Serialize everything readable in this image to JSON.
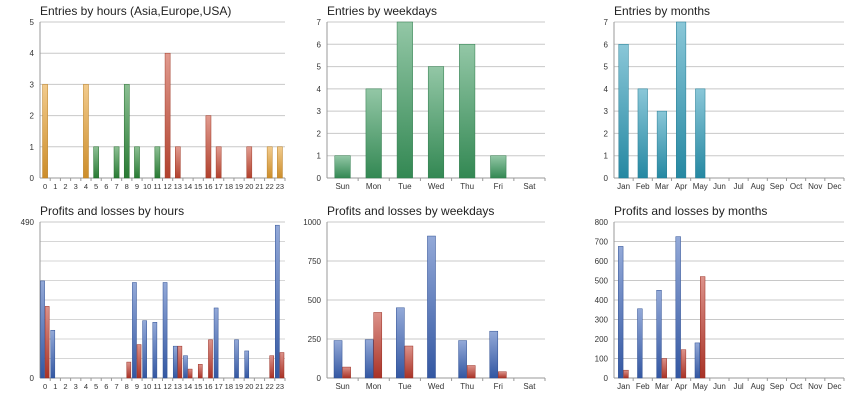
{
  "chart_data": [
    {
      "type": "bar",
      "title": "Entries by hours (Asia,Europe,USA)",
      "categories": [
        "0",
        "1",
        "2",
        "3",
        "4",
        "5",
        "6",
        "7",
        "8",
        "9",
        "10",
        "11",
        "12",
        "13",
        "14",
        "15",
        "16",
        "17",
        "18",
        "19",
        "20",
        "21",
        "22",
        "23"
      ],
      "values": [
        3,
        0,
        0,
        0,
        3,
        1,
        0,
        1,
        3,
        1,
        0,
        1,
        4,
        1,
        0,
        0,
        2,
        1,
        0,
        0,
        1,
        0,
        1,
        1
      ],
      "bar_colors": [
        "#e8a030",
        "#e8a030",
        "#e8a030",
        "#e8a030",
        "#e8a030",
        "#2e8b3a",
        "#2e8b3a",
        "#2e8b3a",
        "#2e8b3a",
        "#2e8b3a",
        "#2e8b3a",
        "#2e8b3a",
        "#c94a33",
        "#c94a33",
        "#c94a33",
        "#c94a33",
        "#c94a33",
        "#c94a33",
        "#c94a33",
        "#c94a33",
        "#c94a33",
        "#c94a33",
        "#e8a030",
        "#e8a030"
      ],
      "yticks": [
        "0",
        "1",
        "2",
        "3",
        "4",
        "5"
      ],
      "ylim": [
        0,
        5
      ],
      "grid": true
    },
    {
      "type": "bar",
      "title": "Entries by weekdays",
      "categories": [
        "Sun",
        "Mon",
        "Tue",
        "Wed",
        "Thu",
        "Fri",
        "Sat"
      ],
      "values": [
        1,
        4,
        7,
        5,
        6,
        1,
        0
      ],
      "color": "#3a9a5e",
      "yticks": [
        "0",
        "1",
        "2",
        "3",
        "4",
        "5",
        "6",
        "7"
      ],
      "ylim": [
        0,
        7
      ],
      "grid": true
    },
    {
      "type": "bar",
      "title": "Entries by months",
      "categories": [
        "Jan",
        "Feb",
        "Mar",
        "Apr",
        "May",
        "Jun",
        "Jul",
        "Aug",
        "Sep",
        "Oct",
        "Nov",
        "Dec"
      ],
      "values": [
        6,
        4,
        3,
        7,
        4,
        0,
        0,
        0,
        0,
        0,
        0,
        0
      ],
      "color": "#2a9ab8",
      "yticks": [
        "0",
        "1",
        "2",
        "3",
        "4",
        "5",
        "6",
        "7"
      ],
      "ylim": [
        0,
        7
      ],
      "grid": true
    },
    {
      "type": "bar",
      "title": "Profits and losses by hours",
      "categories": [
        "0",
        "1",
        "2",
        "3",
        "4",
        "5",
        "6",
        "7",
        "8",
        "9",
        "10",
        "11",
        "12",
        "13",
        "14",
        "15",
        "16",
        "17",
        "18",
        "19",
        "20",
        "21",
        "22",
        "23"
      ],
      "series": [
        {
          "values": [
            305,
            150,
            0,
            0,
            0,
            0,
            0,
            0,
            0,
            300,
            180,
            175,
            300,
            100,
            70,
            0,
            0,
            220,
            0,
            120,
            85,
            0,
            0,
            480
          ],
          "color": "#3a63b8"
        },
        {
          "values": [
            225,
            0,
            0,
            0,
            0,
            0,
            0,
            0,
            50,
            105,
            0,
            0,
            0,
            100,
            28,
            43,
            120,
            0,
            0,
            0,
            0,
            0,
            70,
            80
          ],
          "color": "#c0392b"
        }
      ],
      "yticks": [
        "0",
        "490"
      ],
      "ylim": [
        0,
        490
      ],
      "grid": true
    },
    {
      "type": "bar",
      "title": "Profits and losses by weekdays",
      "categories": [
        "Sun",
        "Mon",
        "Tue",
        "Wed",
        "Thu",
        "Fri",
        "Sat"
      ],
      "series": [
        {
          "values": [
            240,
            245,
            450,
            910,
            240,
            300,
            0
          ],
          "color": "#3a63b8"
        },
        {
          "values": [
            70,
            420,
            205,
            0,
            80,
            40,
            0
          ],
          "color": "#c0392b"
        }
      ],
      "yticks": [
        "0",
        "250",
        "500",
        "750",
        "1000"
      ],
      "ylim": [
        0,
        1000
      ],
      "grid": true
    },
    {
      "type": "bar",
      "title": "Profits and losses by months",
      "categories": [
        "Jan",
        "Feb",
        "Mar",
        "Apr",
        "May",
        "Jun",
        "Jul",
        "Aug",
        "Sep",
        "Oct",
        "Nov",
        "Dec"
      ],
      "series": [
        {
          "values": [
            675,
            355,
            450,
            725,
            180,
            0,
            0,
            0,
            0,
            0,
            0,
            0
          ],
          "color": "#3a63b8"
        },
        {
          "values": [
            40,
            0,
            100,
            145,
            520,
            0,
            0,
            0,
            0,
            0,
            0,
            0
          ],
          "color": "#c0392b"
        }
      ],
      "yticks": [
        "0",
        "100",
        "200",
        "300",
        "400",
        "500",
        "600",
        "700",
        "800"
      ],
      "ylim": [
        0,
        800
      ],
      "grid": true
    }
  ]
}
